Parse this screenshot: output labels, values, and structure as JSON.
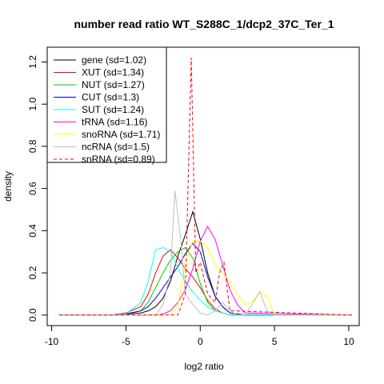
{
  "chart_data": {
    "type": "line",
    "title": "number read ratio WT_S288C_1/dcp2_37C_Ter_1",
    "xlabel": "log2 ratio",
    "ylabel": "density",
    "xlim": [
      -10.3,
      10.7
    ],
    "ylim": [
      -0.05,
      1.27
    ],
    "xticks": [
      -10,
      -5,
      0,
      5,
      10
    ],
    "yticks": [
      0.0,
      0.2,
      0.4,
      0.6,
      0.8,
      1.0,
      1.2
    ],
    "legend_position": "top-left",
    "series": [
      {
        "name": "gene (sd=1.02)",
        "color": "#000000",
        "dash": false,
        "x": [
          -9.5,
          -6,
          -5,
          -4,
          -3.5,
          -3,
          -2.5,
          -2,
          -1.5,
          -1,
          -0.5,
          0,
          0.5,
          1,
          1.5,
          2,
          3,
          10.2
        ],
        "y": [
          0,
          0,
          0.005,
          0.01,
          0.02,
          0.04,
          0.08,
          0.16,
          0.28,
          0.38,
          0.49,
          0.36,
          0.2,
          0.09,
          0.04,
          0.01,
          0,
          0
        ]
      },
      {
        "name": "XUT (sd=1.34)",
        "color": "#ff0000",
        "dash": false,
        "x": [
          -9.5,
          -6,
          -5,
          -4,
          -3.5,
          -3,
          -2.5,
          -2,
          -1.5,
          -1,
          -0.5,
          0,
          0.5,
          1,
          1.5,
          2,
          3,
          10.2
        ],
        "y": [
          0,
          0,
          0.01,
          0.04,
          0.1,
          0.2,
          0.28,
          0.31,
          0.27,
          0.22,
          0.18,
          0.13,
          0.07,
          0.03,
          0.01,
          0,
          0,
          0
        ]
      },
      {
        "name": "NUT (sd=1.27)",
        "color": "#00cc00",
        "dash": false,
        "x": [
          -9.5,
          -6,
          -5,
          -4,
          -3.5,
          -3,
          -2.5,
          -2,
          -1.5,
          -1,
          -0.5,
          0,
          0.5,
          1,
          1.5,
          2,
          3,
          10.2
        ],
        "y": [
          0,
          0,
          0.005,
          0.02,
          0.06,
          0.13,
          0.2,
          0.26,
          0.3,
          0.32,
          0.27,
          0.15,
          0.06,
          0.02,
          0.01,
          0,
          0,
          0
        ]
      },
      {
        "name": "CUT (sd=1.3)",
        "color": "#0000cc",
        "dash": false,
        "x": [
          -9.5,
          -6,
          -5,
          -4,
          -3.5,
          -3,
          -2.5,
          -2,
          -1.5,
          -1,
          -0.5,
          0,
          0.5,
          1,
          1.5,
          2,
          3,
          10.2
        ],
        "y": [
          0,
          0,
          0.005,
          0.02,
          0.04,
          0.08,
          0.13,
          0.18,
          0.23,
          0.29,
          0.34,
          0.3,
          0.18,
          0.09,
          0.04,
          0.01,
          0,
          0
        ]
      },
      {
        "name": "SUT (sd=1.24)",
        "color": "#00ffff",
        "dash": false,
        "x": [
          -9.5,
          -6,
          -5,
          -4,
          -3.5,
          -3,
          -2.5,
          -2,
          -1.5,
          -1,
          -0.5,
          0,
          0.5,
          1,
          1.5,
          2,
          3,
          10.2
        ],
        "y": [
          0,
          0,
          0.005,
          0.06,
          0.16,
          0.31,
          0.32,
          0.3,
          0.22,
          0.16,
          0.11,
          0.07,
          0.04,
          0.02,
          0.01,
          0,
          0,
          0
        ]
      },
      {
        "name": "tRNA (sd=1.16)",
        "color": "#ff00ff",
        "dash": false,
        "x": [
          -9.5,
          -5,
          -3,
          -2.5,
          -2,
          -1.5,
          -1,
          -0.5,
          0,
          0.5,
          1,
          1.5,
          2,
          2.5,
          3,
          10.2
        ],
        "y": [
          0,
          0,
          0,
          0.005,
          0.02,
          0.06,
          0.12,
          0.22,
          0.35,
          0.42,
          0.36,
          0.24,
          0.12,
          0.05,
          0.01,
          0
        ]
      },
      {
        "name": "snoRNA (sd=1.71)",
        "color": "#ffff00",
        "dash": false,
        "x": [
          -9.5,
          -3,
          -2,
          -1.5,
          -1,
          -0.5,
          0,
          0.5,
          1,
          1.5,
          2,
          2.5,
          3,
          3.5,
          4,
          4.5,
          5,
          10.2
        ],
        "y": [
          0,
          0,
          0,
          0.05,
          0.24,
          0.35,
          0.35,
          0.32,
          0.24,
          0.2,
          0.16,
          0.1,
          0.05,
          0.06,
          0.11,
          0.09,
          0,
          0
        ]
      },
      {
        "name": "ncRNA (sd=1.5)",
        "color": "#bebebe",
        "dash": false,
        "x": [
          -9.5,
          -3,
          -2.5,
          -2,
          -1.7,
          -1.3,
          -1,
          -0.5,
          0,
          0.5,
          1,
          1.5,
          2,
          2.5,
          3,
          3.5,
          4,
          4.5,
          5,
          10.2
        ],
        "y": [
          0,
          0,
          0.05,
          0.2,
          0.59,
          0.35,
          0.1,
          0.05,
          0.01,
          0,
          0.02,
          0.06,
          0.02,
          0,
          0,
          0.05,
          0.11,
          0.02,
          0,
          0
        ]
      },
      {
        "name": "snRNA (sd=0.89)",
        "color": "#ff0000",
        "dash": true,
        "x": [
          -9.5,
          -1.5,
          -1,
          -0.6,
          -0.3,
          0,
          0.5,
          1,
          1.3,
          1.6,
          2,
          10.2
        ],
        "y": [
          0,
          0,
          0.1,
          1.22,
          0.2,
          0.25,
          0.1,
          0.06,
          0.2,
          0.25,
          0.02,
          0
        ]
      }
    ]
  }
}
